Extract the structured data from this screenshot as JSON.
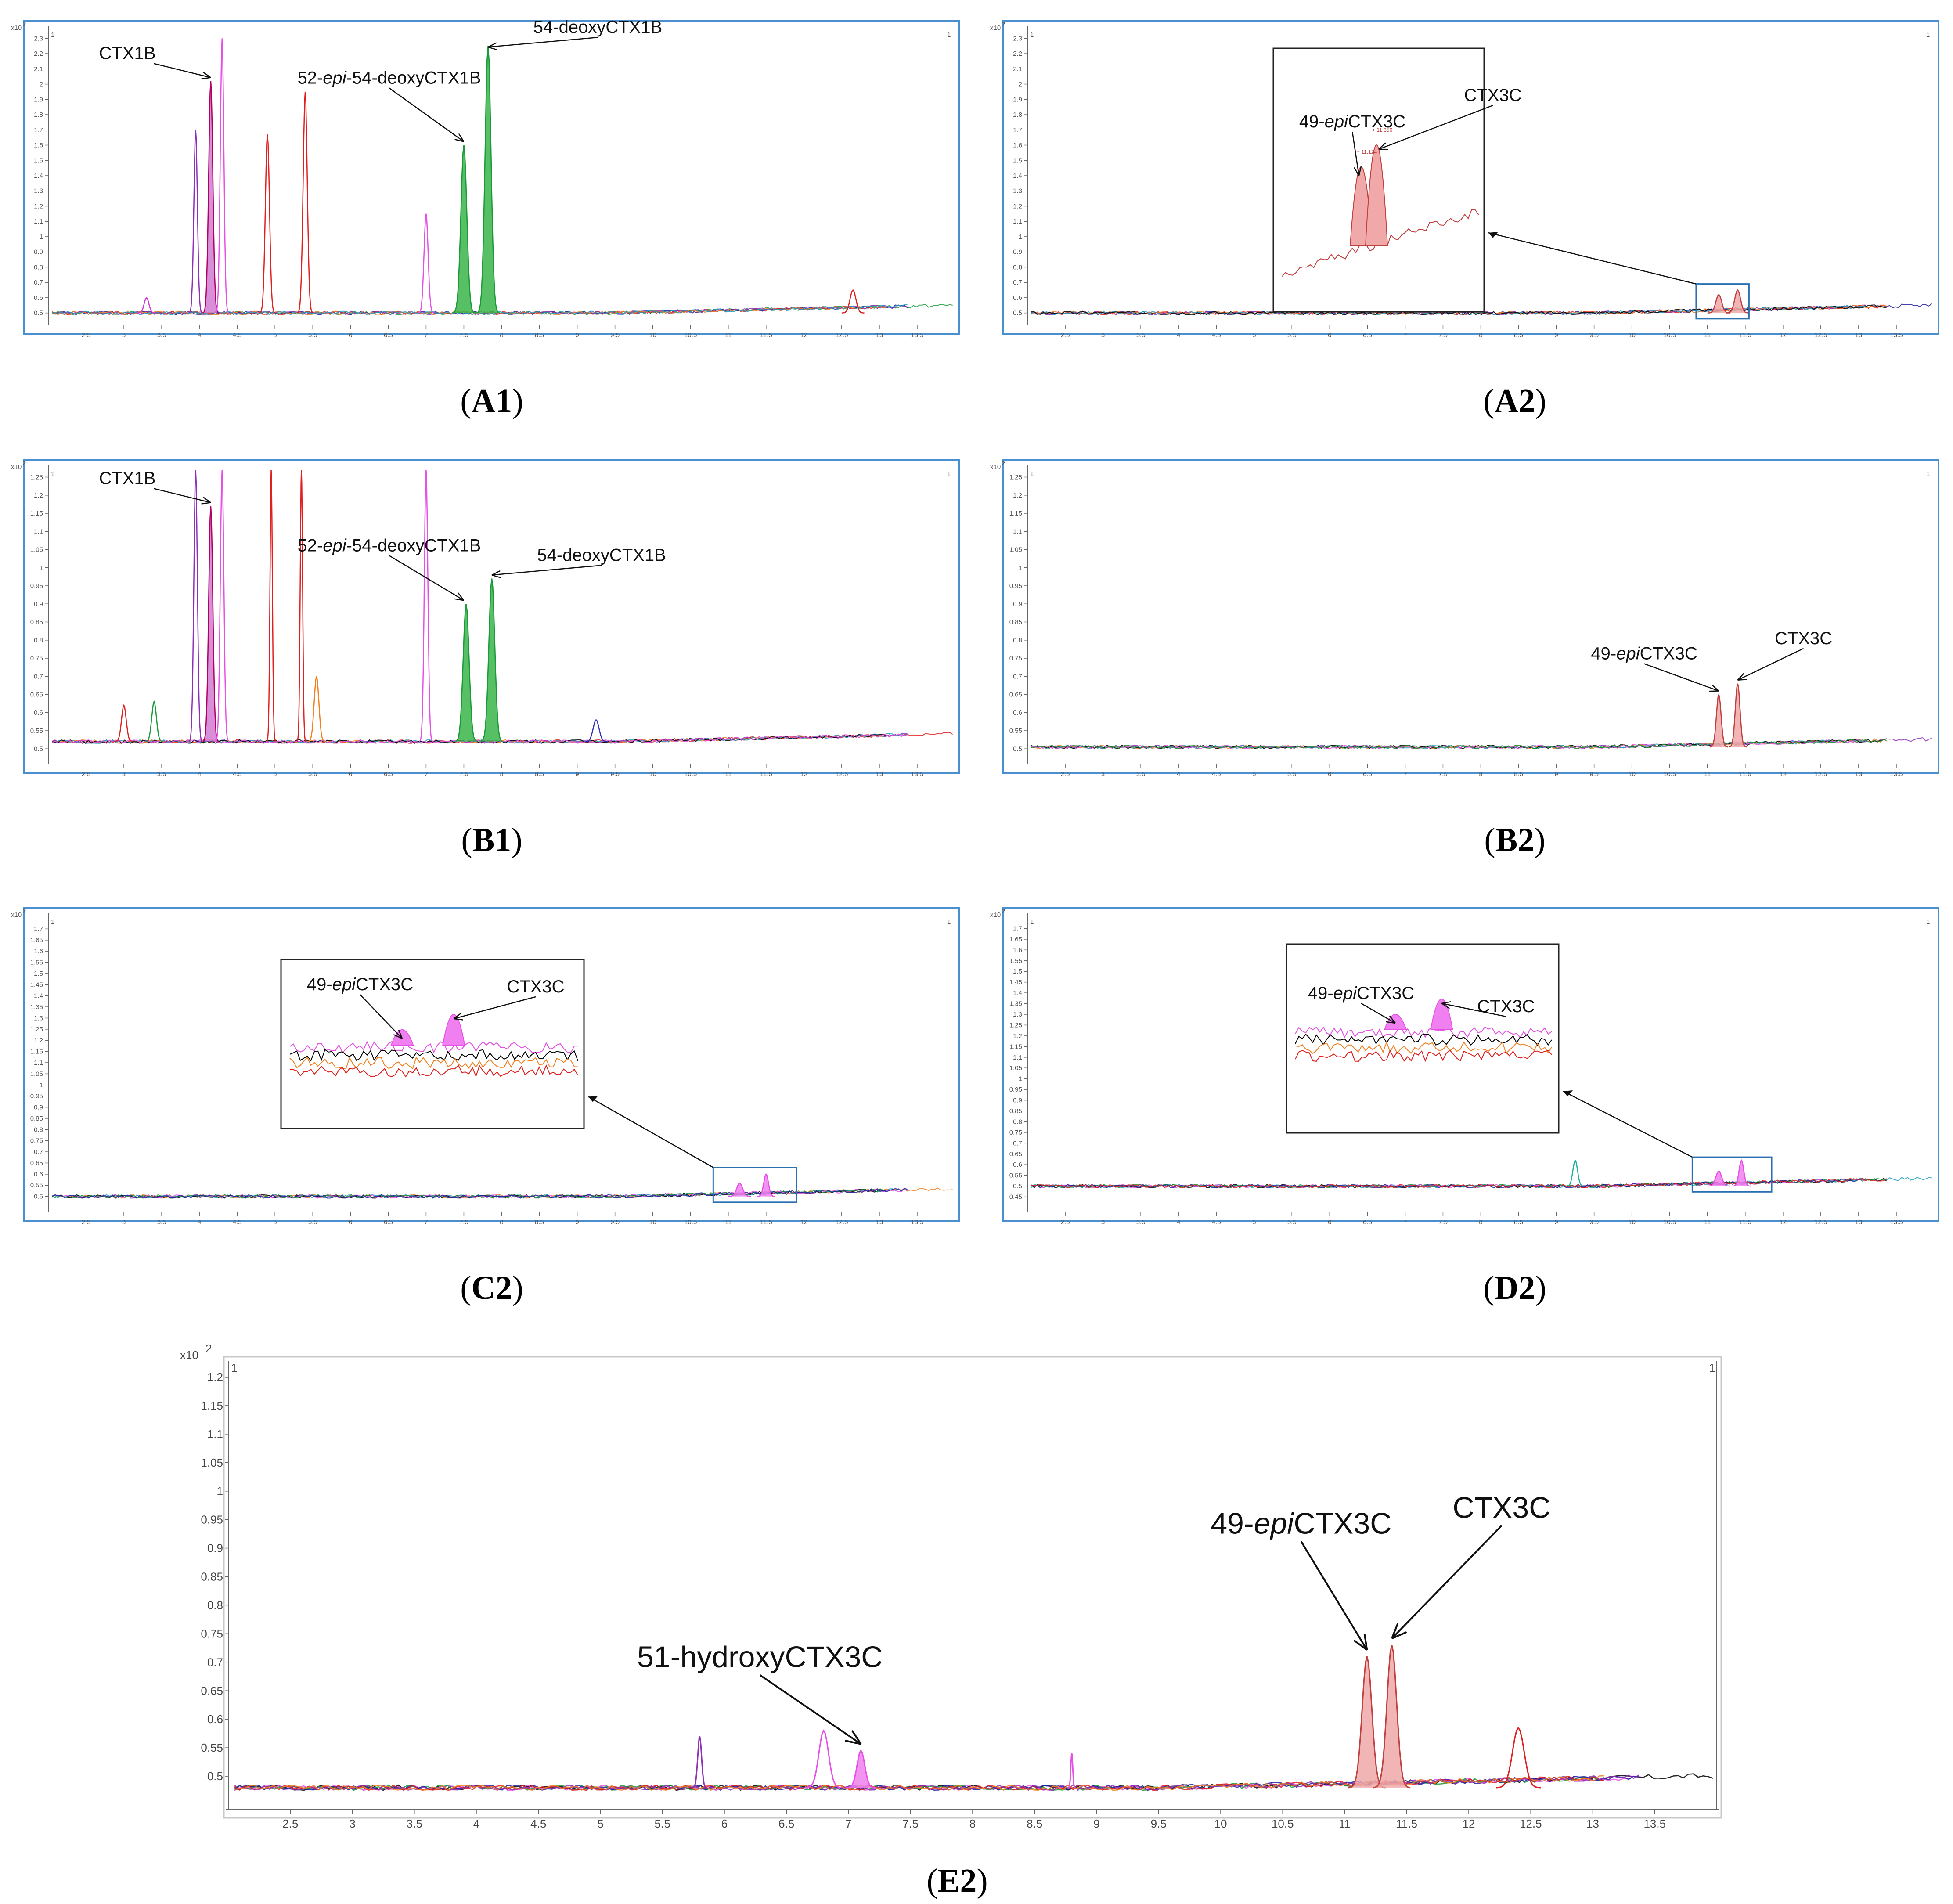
{
  "chart_data": [
    {
      "id": "A1",
      "type": "line",
      "caption": "A1",
      "caption_parts": [
        "(",
        "A1",
        ")"
      ],
      "y_exponent_label": "x10",
      "y_exponent_sup": "2",
      "channel_marker": "1",
      "xlim": [
        2.0,
        14.0
      ],
      "ylim": [
        0.45,
        2.35
      ],
      "x_ticks": [
        "2.5",
        "3",
        "3.5",
        "4",
        "4.5",
        "5",
        "5.5",
        "6",
        "6.5",
        "7",
        "7.5",
        "8",
        "8.5",
        "9",
        "9.5",
        "10",
        "10.5",
        "11",
        "11.5",
        "12",
        "12.5",
        "13",
        "13.5"
      ],
      "y_ticks": [
        "0.5",
        "0.6",
        "0.7",
        "0.8",
        "0.9",
        "1",
        "1.1",
        "1.2",
        "1.3",
        "1.4",
        "1.5",
        "1.6",
        "1.7",
        "1.8",
        "1.9",
        "2",
        "2.1",
        "2.2",
        "2.3"
      ],
      "annotations": [
        {
          "label_parts": [
            "CTX1B"
          ],
          "x": 4.15,
          "y": 2.02
        },
        {
          "label_parts": [
            "52-",
            "epi",
            "-54-deoxyCTX1B"
          ],
          "x": 7.5,
          "y": 1.6
        },
        {
          "label_parts": [
            "54-deoxyCTX1B"
          ],
          "x": 7.82,
          "y": 2.22
        }
      ],
      "peaks": [
        {
          "x": 3.3,
          "h": 0.6,
          "w": 0.04,
          "color": "#d238d2",
          "fill": false
        },
        {
          "x": 3.95,
          "h": 1.7,
          "w": 0.03,
          "color": "#8e2fb8",
          "fill": false
        },
        {
          "x": 4.15,
          "h": 2.02,
          "w": 0.035,
          "color": "#b00060",
          "fill": true,
          "fillColor": "#d27ad2"
        },
        {
          "x": 4.3,
          "h": 2.3,
          "w": 0.03,
          "color": "#e650e6",
          "fill": false
        },
        {
          "x": 4.9,
          "h": 1.67,
          "w": 0.035,
          "color": "#e02020",
          "fill": false
        },
        {
          "x": 5.4,
          "h": 1.95,
          "w": 0.035,
          "color": "#e02020",
          "fill": false
        },
        {
          "x": 7.0,
          "h": 1.15,
          "w": 0.035,
          "color": "#e650e6",
          "fill": false
        },
        {
          "x": 7.5,
          "h": 1.6,
          "w": 0.05,
          "color": "#1a9a3a",
          "fill": true,
          "fillColor": "#39b54a"
        },
        {
          "x": 7.82,
          "h": 2.25,
          "w": 0.05,
          "color": "#1a9a3a",
          "fill": true,
          "fillColor": "#39b54a"
        },
        {
          "x": 12.65,
          "h": 0.65,
          "w": 0.05,
          "color": "#e02020",
          "fill": false
        }
      ],
      "baseline": 0.5,
      "inset": null
    },
    {
      "id": "A2",
      "type": "line",
      "caption": "A2",
      "caption_parts": [
        "(",
        "A2",
        ")"
      ],
      "y_exponent_label": "x10",
      "y_exponent_sup": "2",
      "channel_marker": "1",
      "xlim": [
        2.0,
        14.0
      ],
      "ylim": [
        0.45,
        2.35
      ],
      "x_ticks": [
        "2.5",
        "3",
        "3.5",
        "4",
        "4.5",
        "5",
        "5.5",
        "6",
        "6.5",
        "7",
        "7.5",
        "8",
        "8.5",
        "9",
        "9.5",
        "10",
        "10.5",
        "11",
        "11.5",
        "12",
        "12.5",
        "13",
        "13.5"
      ],
      "y_ticks": [
        "0.5",
        "0.6",
        "0.7",
        "0.8",
        "0.9",
        "1",
        "1.1",
        "1.2",
        "1.3",
        "1.4",
        "1.5",
        "1.6",
        "1.7",
        "1.8",
        "1.9",
        "2",
        "2.1",
        "2.2",
        "2.3"
      ],
      "annotations": [
        {
          "label_parts": [
            "49-",
            "epi",
            "CTX3C"
          ],
          "x": 11.15,
          "y": 0.62
        },
        {
          "label_parts": [
            "CTX3C"
          ],
          "x": 11.4,
          "y": 0.65
        }
      ],
      "inset_labels": [
        "+ 11.124",
        "+ 11.356"
      ],
      "peaks": [
        {
          "x": 11.15,
          "h": 0.62,
          "w": 0.05,
          "color": "#c04040",
          "fill": true,
          "fillColor": "#f0a8a8"
        },
        {
          "x": 11.4,
          "h": 0.65,
          "w": 0.05,
          "color": "#c04040",
          "fill": true,
          "fillColor": "#f0a8a8"
        }
      ],
      "baseline": 0.5,
      "inset": {
        "range": [
          10.85,
          11.55
        ]
      }
    },
    {
      "id": "B1",
      "type": "line",
      "caption": "B1",
      "caption_parts": [
        "(",
        "B1",
        ")"
      ],
      "y_exponent_label": "x10",
      "y_exponent_sup": "2",
      "channel_marker": "1",
      "xlim": [
        2.0,
        14.0
      ],
      "ylim": [
        0.47,
        1.27
      ],
      "x_ticks": [
        "2.5",
        "3",
        "3.5",
        "4",
        "4.5",
        "5",
        "5.5",
        "6",
        "6.5",
        "7",
        "7.5",
        "8",
        "8.5",
        "9",
        "9.5",
        "10",
        "10.5",
        "11",
        "11.5",
        "12",
        "12.5",
        "13",
        "13.5"
      ],
      "y_ticks": [
        "0.5",
        "0.55",
        "0.6",
        "0.65",
        "0.7",
        "0.75",
        "0.8",
        "0.85",
        "0.9",
        "0.95",
        "1",
        "1.05",
        "1.1",
        "1.15",
        "1.2",
        "1.25"
      ],
      "annotations": [
        {
          "label_parts": [
            "CTX1B"
          ],
          "x": 4.15,
          "y": 1.17
        },
        {
          "label_parts": [
            "52-",
            "epi",
            "-54-deoxyCTX1B"
          ],
          "x": 7.5,
          "y": 0.9
        },
        {
          "label_parts": [
            "54-deoxyCTX1B"
          ],
          "x": 7.87,
          "y": 0.97
        }
      ],
      "peaks": [
        {
          "x": 3.0,
          "h": 0.62,
          "w": 0.04,
          "color": "#e02020",
          "fill": false
        },
        {
          "x": 3.4,
          "h": 0.63,
          "w": 0.04,
          "color": "#1a9a3a",
          "fill": false
        },
        {
          "x": 3.95,
          "h": 1.3,
          "w": 0.03,
          "color": "#8e2fb8",
          "fill": false
        },
        {
          "x": 4.15,
          "h": 1.17,
          "w": 0.035,
          "color": "#b00060",
          "fill": true,
          "fillColor": "#d27ad2"
        },
        {
          "x": 4.3,
          "h": 1.3,
          "w": 0.03,
          "color": "#e650e6",
          "fill": false
        },
        {
          "x": 4.95,
          "h": 1.3,
          "w": 0.02,
          "color": "#e02020",
          "fill": false
        },
        {
          "x": 5.35,
          "h": 1.3,
          "w": 0.02,
          "color": "#e02020",
          "fill": false
        },
        {
          "x": 5.55,
          "h": 0.7,
          "w": 0.04,
          "color": "#f08020",
          "fill": false
        },
        {
          "x": 7.0,
          "h": 1.3,
          "w": 0.03,
          "color": "#e650e6",
          "fill": false
        },
        {
          "x": 7.53,
          "h": 0.9,
          "w": 0.05,
          "color": "#1a9a3a",
          "fill": true,
          "fillColor": "#39b54a"
        },
        {
          "x": 7.87,
          "h": 0.97,
          "w": 0.05,
          "color": "#1a9a3a",
          "fill": true,
          "fillColor": "#39b54a"
        },
        {
          "x": 9.25,
          "h": 0.58,
          "w": 0.05,
          "color": "#3030c0",
          "fill": false
        }
      ],
      "baseline": 0.52,
      "inset": null
    },
    {
      "id": "B2",
      "type": "line",
      "caption": "B2",
      "caption_parts": [
        "(",
        "B2",
        ")"
      ],
      "y_exponent_label": "x10",
      "y_exponent_sup": "2",
      "channel_marker": "1",
      "xlim": [
        2.0,
        14.0
      ],
      "ylim": [
        0.47,
        1.27
      ],
      "x_ticks": [
        "2.5",
        "3",
        "3.5",
        "4",
        "4.5",
        "5",
        "5.5",
        "6",
        "6.5",
        "7",
        "7.5",
        "8",
        "8.5",
        "9",
        "9.5",
        "10",
        "10.5",
        "11",
        "11.5",
        "12",
        "12.5",
        "13",
        "13.5"
      ],
      "y_ticks": [
        "0.5",
        "0.55",
        "0.6",
        "0.65",
        "0.7",
        "0.75",
        "0.8",
        "0.85",
        "0.9",
        "0.95",
        "1",
        "1.05",
        "1.1",
        "1.15",
        "1.2",
        "1.25"
      ],
      "annotations": [
        {
          "label_parts": [
            "49-",
            "epi",
            "CTX3C"
          ],
          "x": 11.15,
          "y": 0.65
        },
        {
          "label_parts": [
            "CTX3C"
          ],
          "x": 11.4,
          "y": 0.68
        }
      ],
      "peaks": [
        {
          "x": 11.15,
          "h": 0.65,
          "w": 0.04,
          "color": "#c04040",
          "fill": true,
          "fillColor": "#f0a8a8"
        },
        {
          "x": 11.4,
          "h": 0.68,
          "w": 0.04,
          "color": "#c04040",
          "fill": true,
          "fillColor": "#f0a8a8"
        }
      ],
      "baseline": 0.505,
      "inset": null
    },
    {
      "id": "C2",
      "type": "line",
      "caption": "C2",
      "caption_parts": [
        "(",
        "C2",
        ")"
      ],
      "y_exponent_label": "x10",
      "y_exponent_sup": "2",
      "channel_marker": "1",
      "xlim": [
        2.0,
        14.0
      ],
      "ylim": [
        0.45,
        1.75
      ],
      "x_ticks": [
        "2.5",
        "3",
        "3.5",
        "4",
        "4.5",
        "5",
        "5.5",
        "6",
        "6.5",
        "7",
        "7.5",
        "8",
        "8.5",
        "9",
        "9.5",
        "10",
        "10.5",
        "11",
        "11.5",
        "12",
        "12.5",
        "13",
        "13.5"
      ],
      "y_ticks": [
        "0.5",
        "0.55",
        "0.6",
        "0.65",
        "0.7",
        "0.75",
        "0.8",
        "0.85",
        "0.9",
        "0.95",
        "1",
        "1.05",
        "1.1",
        "1.15",
        "1.2",
        "1.25",
        "1.3",
        "1.35",
        "1.4",
        "1.45",
        "1.5",
        "1.55",
        "1.6",
        "1.65",
        "1.7"
      ],
      "annotations": [
        {
          "label_parts": [
            "49-",
            "epi",
            "CTX3C"
          ],
          "x": 11.15,
          "y": 0.56
        },
        {
          "label_parts": [
            "CTX3C"
          ],
          "x": 11.5,
          "y": 0.6
        }
      ],
      "peaks": [
        {
          "x": 11.15,
          "h": 0.56,
          "w": 0.05,
          "color": "#e650e6",
          "fill": true,
          "fillColor": "#f080f0"
        },
        {
          "x": 11.5,
          "h": 0.6,
          "w": 0.04,
          "color": "#e650e6",
          "fill": true,
          "fillColor": "#f080f0"
        }
      ],
      "baseline": 0.5,
      "inset": {
        "range": [
          10.8,
          11.9
        ]
      }
    },
    {
      "id": "D2",
      "type": "line",
      "caption": "D2",
      "caption_parts": [
        "(",
        "D2",
        ")"
      ],
      "y_exponent_label": "x10",
      "y_exponent_sup": "2",
      "channel_marker": "1",
      "xlim": [
        2.0,
        14.0
      ],
      "ylim": [
        0.4,
        1.75
      ],
      "x_ticks": [
        "2.5",
        "3",
        "3.5",
        "4",
        "4.5",
        "5",
        "5.5",
        "6",
        "6.5",
        "7",
        "7.5",
        "8",
        "8.5",
        "9",
        "9.5",
        "10",
        "10.5",
        "11",
        "11.5",
        "12",
        "12.5",
        "13",
        "13.5"
      ],
      "y_ticks": [
        "0.45",
        "0.5",
        "0.55",
        "0.6",
        "0.65",
        "0.7",
        "0.75",
        "0.8",
        "0.85",
        "0.9",
        "0.95",
        "1",
        "1.05",
        "1.1",
        "1.15",
        "1.2",
        "1.25",
        "1.3",
        "1.35",
        "1.4",
        "1.45",
        "1.5",
        "1.55",
        "1.6",
        "1.65",
        "1.7"
      ],
      "annotations": [
        {
          "label_parts": [
            "49-",
            "epi",
            "CTX3C"
          ],
          "x": 11.15,
          "y": 0.57
        },
        {
          "label_parts": [
            "CTX3C"
          ],
          "x": 11.45,
          "y": 0.62
        }
      ],
      "peaks": [
        {
          "x": 11.15,
          "h": 0.57,
          "w": 0.05,
          "color": "#e650e6",
          "fill": true,
          "fillColor": "#f080f0"
        },
        {
          "x": 11.45,
          "h": 0.62,
          "w": 0.04,
          "color": "#e650e6",
          "fill": true,
          "fillColor": "#f080f0"
        },
        {
          "x": 9.25,
          "h": 0.62,
          "w": 0.04,
          "color": "#20b0a0",
          "fill": false
        }
      ],
      "baseline": 0.5,
      "inset": {
        "range": [
          10.8,
          11.85
        ]
      }
    },
    {
      "id": "E2",
      "type": "line",
      "caption": "E2",
      "caption_parts": [
        "(",
        "E2",
        ")"
      ],
      "y_exponent_label": "x10",
      "y_exponent_sup": "2",
      "channel_marker": "1",
      "xlim": [
        2.0,
        14.0
      ],
      "ylim": [
        0.45,
        1.22
      ],
      "x_ticks": [
        "2.5",
        "3",
        "3.5",
        "4",
        "4.5",
        "5",
        "5.5",
        "6",
        "6.5",
        "7",
        "7.5",
        "8",
        "8.5",
        "9",
        "9.5",
        "10",
        "10.5",
        "11",
        "11.5",
        "12",
        "12.5",
        "13",
        "13.5"
      ],
      "y_ticks": [
        "0.5",
        "0.55",
        "0.6",
        "0.65",
        "0.7",
        "0.75",
        "0.8",
        "0.85",
        "0.9",
        "0.95",
        "1",
        "1.05",
        "1.1",
        "1.15",
        "1.2"
      ],
      "annotations": [
        {
          "label_parts": [
            "51-hydroxyCTX3C"
          ],
          "x": 7.1,
          "y": 0.545
        },
        {
          "label_parts": [
            "49-",
            "epi",
            "CTX3C"
          ],
          "x": 11.18,
          "y": 0.71
        },
        {
          "label_parts": [
            "CTX3C"
          ],
          "x": 11.38,
          "y": 0.73
        }
      ],
      "peaks": [
        {
          "x": 5.8,
          "h": 0.57,
          "w": 0.02,
          "color": "#8e2fb8",
          "fill": false
        },
        {
          "x": 6.8,
          "h": 0.58,
          "w": 0.05,
          "color": "#e650e6",
          "fill": false
        },
        {
          "x": 7.1,
          "h": 0.545,
          "w": 0.04,
          "color": "#e650e6",
          "fill": true,
          "fillColor": "#f080f0"
        },
        {
          "x": 8.8,
          "h": 0.54,
          "w": 0.01,
          "color": "#e650e6",
          "fill": false
        },
        {
          "x": 11.18,
          "h": 0.71,
          "w": 0.05,
          "color": "#c04040",
          "fill": true,
          "fillColor": "#f0a8a8"
        },
        {
          "x": 11.38,
          "h": 0.73,
          "w": 0.05,
          "color": "#c04040",
          "fill": true,
          "fillColor": "#f0a8a8"
        },
        {
          "x": 12.4,
          "h": 0.585,
          "w": 0.06,
          "color": "#e02020",
          "fill": false
        }
      ],
      "baseline": 0.48,
      "inset": null
    }
  ]
}
